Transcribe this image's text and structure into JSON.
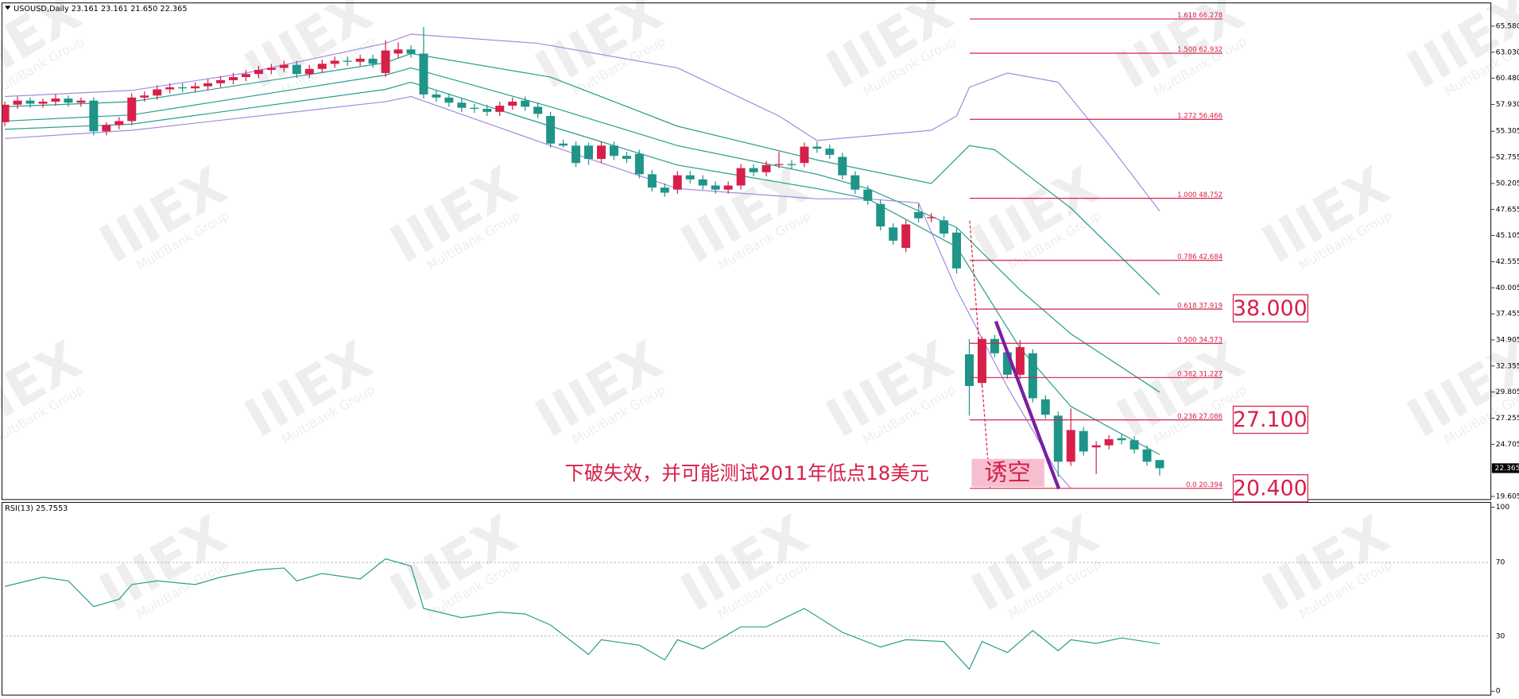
{
  "header": "USOUSD,Daily  23.161 23.161 21.650 22.365",
  "watermark": {
    "logo": "IIIEX",
    "name": "MultiBank Group"
  },
  "chart_data": [
    {
      "type": "candlestick",
      "ylim": [
        19.3,
        67.85
      ],
      "yticks": [
        {
          "value": 65.58,
          "label": "65.580"
        },
        {
          "value": 63.03,
          "label": "63.030"
        },
        {
          "value": 60.48,
          "label": "60.480"
        },
        {
          "value": 57.93,
          "label": "57.930"
        },
        55.305,
        52.755,
        50.205,
        47.655,
        45.105,
        42.555,
        40.005,
        37.455,
        34.905,
        32.355,
        29.805,
        27.255,
        24.705,
        19.605
      ],
      "last_price": 22.365,
      "up_color": "#d6204a",
      "down_color": "#1f9488",
      "open": [
        56.2,
        57.9,
        58.3,
        58.0,
        58.2,
        58.5,
        58.1,
        58.3,
        55.3,
        55.9,
        56.3,
        58.6,
        58.8,
        59.4,
        59.6,
        59.5,
        59.7,
        60.0,
        60.3,
        60.6,
        60.9,
        61.3,
        61.5,
        61.8,
        60.9,
        61.4,
        61.9,
        62.2,
        62.1,
        62.4,
        61.0,
        62.9,
        63.3,
        62.9,
        58.9,
        58.6,
        58.1,
        57.6,
        57.5,
        57.2,
        57.8,
        58.3,
        57.7,
        56.8,
        54.1,
        53.9,
        53.9,
        52.6,
        53.9,
        52.9,
        53.1,
        51.1,
        49.8,
        49.6,
        51.0,
        50.6,
        50.0,
        49.6,
        50.0,
        51.7,
        51.3,
        52.0,
        52.1,
        52.2,
        53.8,
        53.6,
        52.8,
        51.0,
        49.6,
        48.2,
        45.9,
        43.9,
        47.4,
        46.8,
        46.6,
        45.4,
        33.5,
        30.7,
        35.0,
        33.7,
        31.5,
        33.6,
        29.1,
        27.5,
        23.0,
        26.0,
        24.4,
        24.6,
        25.3,
        25.1,
        24.2,
        23.161
      ],
      "high": [
        58.2,
        58.7,
        58.6,
        58.5,
        58.9,
        58.8,
        58.6,
        58.6,
        56.2,
        56.7,
        59.0,
        59.2,
        59.8,
        60.0,
        60.0,
        60.1,
        60.4,
        60.7,
        61.0,
        61.3,
        61.7,
        61.9,
        62.2,
        62.2,
        61.8,
        62.3,
        62.6,
        62.6,
        62.8,
        62.8,
        64.2,
        64.0,
        63.7,
        65.5,
        59.3,
        59.0,
        58.5,
        58.0,
        57.9,
        58.2,
        58.6,
        58.7,
        58.1,
        57.2,
        54.5,
        54.3,
        54.2,
        54.3,
        54.3,
        53.3,
        53.5,
        51.5,
        50.2,
        51.4,
        51.4,
        51.0,
        50.4,
        50.4,
        52.1,
        52.1,
        52.4,
        53.3,
        52.5,
        54.2,
        54.3,
        54.0,
        53.2,
        51.4,
        50.0,
        48.6,
        46.3,
        46.6,
        48.2,
        47.3,
        47.0,
        45.8,
        35.0,
        35.2,
        35.4,
        34.1,
        34.9,
        34.0,
        29.5,
        27.9,
        28.2,
        26.4,
        25.0,
        25.6,
        25.7,
        25.5,
        24.6,
        23.161
      ],
      "low": [
        55.8,
        57.5,
        57.6,
        57.6,
        57.8,
        57.7,
        57.7,
        54.9,
        54.9,
        55.5,
        55.9,
        58.2,
        58.4,
        59.0,
        59.1,
        59.1,
        59.3,
        59.6,
        59.9,
        60.2,
        60.5,
        60.9,
        61.1,
        60.5,
        60.5,
        61.0,
        61.5,
        61.7,
        61.7,
        61.5,
        60.6,
        62.5,
        62.5,
        58.5,
        58.2,
        57.7,
        57.2,
        57.1,
        56.8,
        56.8,
        57.4,
        57.3,
        56.6,
        53.7,
        53.7,
        51.8,
        52.0,
        52.2,
        52.5,
        52.2,
        50.7,
        49.4,
        48.9,
        49.2,
        50.2,
        49.6,
        49.2,
        49.2,
        49.6,
        50.9,
        50.9,
        51.7,
        51.6,
        51.8,
        53.2,
        52.6,
        50.6,
        49.2,
        48.1,
        45.6,
        44.2,
        43.5,
        46.4,
        46.4,
        44.9,
        41.4,
        27.5,
        30.3,
        33.2,
        31.1,
        31.1,
        28.8,
        27.2,
        21.5,
        22.6,
        23.6,
        21.8,
        24.2,
        24.7,
        23.8,
        22.6,
        21.65
      ],
      "close": [
        57.9,
        58.3,
        58.0,
        58.2,
        58.5,
        58.1,
        58.3,
        55.3,
        55.9,
        56.3,
        58.6,
        58.8,
        59.4,
        59.6,
        59.5,
        59.7,
        60.0,
        60.3,
        60.6,
        60.9,
        61.3,
        61.5,
        61.8,
        60.9,
        61.4,
        61.9,
        62.2,
        62.1,
        62.4,
        61.9,
        63.2,
        63.3,
        62.9,
        58.9,
        58.6,
        58.1,
        57.6,
        57.5,
        57.2,
        57.8,
        58.2,
        57.7,
        57.0,
        54.1,
        53.9,
        52.2,
        52.6,
        53.9,
        52.9,
        52.6,
        51.1,
        49.8,
        49.3,
        51.0,
        50.6,
        50.0,
        49.6,
        50.0,
        51.7,
        51.3,
        52.0,
        52.1,
        52.0,
        53.8,
        53.6,
        53.0,
        51.0,
        49.6,
        48.5,
        46.0,
        44.6,
        46.2,
        46.8,
        46.9,
        45.3,
        41.9,
        30.4,
        35.0,
        33.6,
        31.5,
        34.2,
        29.2,
        27.6,
        23.0,
        26.1,
        24.0,
        24.6,
        25.2,
        25.1,
        24.2,
        23.0,
        22.365
      ],
      "bands": [
        {
          "color": "#a48be0",
          "x": [
            0,
            10,
            19,
            30,
            32,
            42,
            53,
            61,
            64,
            73,
            75,
            76,
            79,
            83,
            87,
            91
          ],
          "values": [
            58.7,
            59.3,
            61.0,
            63.9,
            64.8,
            63.9,
            61.5,
            56.8,
            54.4,
            55.4,
            56.8,
            59.6,
            61.0,
            60.1,
            54.0,
            47.5
          ]
        },
        {
          "color": "#2a9d8f",
          "x": [
            0,
            10,
            30,
            32,
            43,
            53,
            64,
            73,
            76,
            78,
            84,
            91
          ],
          "values": [
            57.7,
            58.2,
            62.0,
            62.9,
            60.6,
            55.8,
            52.5,
            50.2,
            53.9,
            53.5,
            47.8,
            39.3
          ]
        },
        {
          "color": "#2a9d8f",
          "x": [
            0,
            10,
            30,
            32,
            43,
            53,
            64,
            68,
            75,
            80,
            84,
            91
          ],
          "values": [
            56.3,
            56.9,
            60.8,
            61.5,
            57.7,
            53.9,
            51.1,
            49.7,
            45.9,
            39.8,
            35.5,
            29.8
          ]
        },
        {
          "color": "#2a9d8f",
          "x": [
            0,
            10,
            30,
            32,
            43,
            53,
            64,
            68,
            75,
            80,
            84,
            91
          ],
          "values": [
            55.5,
            56.0,
            59.4,
            60.1,
            55.8,
            52.0,
            49.7,
            48.7,
            44.0,
            34.1,
            28.4,
            23.7
          ]
        },
        {
          "color": "#a48be0",
          "x": [
            0,
            10,
            30,
            32,
            43,
            53,
            64,
            68,
            72,
            75,
            79,
            83,
            84
          ],
          "values": [
            54.6,
            55.4,
            58.2,
            58.7,
            53.9,
            49.7,
            48.7,
            48.7,
            48.3,
            39.8,
            30.3,
            21.8,
            20.4
          ]
        }
      ],
      "fib_color": "#d6204a",
      "fib_levels": [
        {
          "ratio": "1.618",
          "value": 66.278
        },
        {
          "ratio": "1.500",
          "value": 62.932
        },
        {
          "ratio": "1.272",
          "value": 56.466
        },
        {
          "ratio": "1.000",
          "value": 48.752
        },
        {
          "ratio": "0.786",
          "value": 42.684
        },
        {
          "ratio": "0.618",
          "value": 37.919
        },
        {
          "ratio": "0.500",
          "value": 34.573
        },
        {
          "ratio": "0.382",
          "value": 31.227
        },
        {
          "ratio": "0.236",
          "value": 27.086
        },
        {
          "ratio": "0.0",
          "value": 20.394
        }
      ],
      "targets": [
        {
          "value": 38,
          "label": "38.000"
        },
        {
          "value": 27.1,
          "label": "27.100"
        },
        {
          "value": 20.4,
          "label": "20.400"
        }
      ],
      "annotation": "下破失效，并可能测试2011年低点18美元",
      "annotation_box": "诱空"
    },
    {
      "type": "line",
      "title": "RSI(13) 25.7553",
      "color": "#2a9d8f",
      "ylim": [
        0,
        100
      ],
      "yticks": [
        100,
        70,
        30,
        0
      ],
      "x": [
        0,
        3,
        5,
        7,
        9,
        10,
        12,
        15,
        17,
        20,
        22,
        23,
        25,
        28,
        30,
        32,
        33,
        36,
        39,
        41,
        43,
        46,
        47,
        50,
        52,
        53,
        55,
        58,
        60,
        63,
        66,
        69,
        71,
        74,
        76,
        77,
        79,
        81,
        83,
        84,
        86,
        88,
        91
      ],
      "values": [
        57,
        62,
        60,
        46,
        50,
        58,
        60,
        58,
        62,
        66,
        67,
        60,
        64,
        61,
        72,
        68,
        45,
        40,
        43,
        42,
        36,
        20,
        28,
        25,
        17,
        28,
        23,
        35,
        35,
        45,
        32,
        24,
        28,
        27,
        12,
        27,
        21,
        33,
        22,
        28,
        26,
        29,
        25.7553
      ]
    }
  ]
}
